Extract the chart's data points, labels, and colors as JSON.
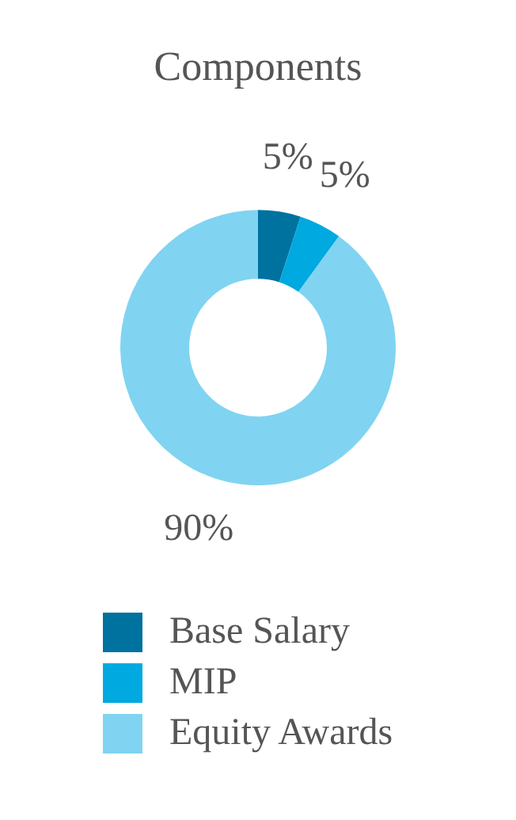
{
  "chart_data": {
    "type": "donut",
    "title": "Components",
    "categories": [
      "Base Salary",
      "MIP",
      "Equity Awards"
    ],
    "values": [
      5,
      5,
      90
    ],
    "colors": [
      "#00729f",
      "#00a9e0",
      "#80d4f1"
    ],
    "value_labels": [
      "5%",
      "5%",
      "90%"
    ],
    "legend": "bottom"
  }
}
